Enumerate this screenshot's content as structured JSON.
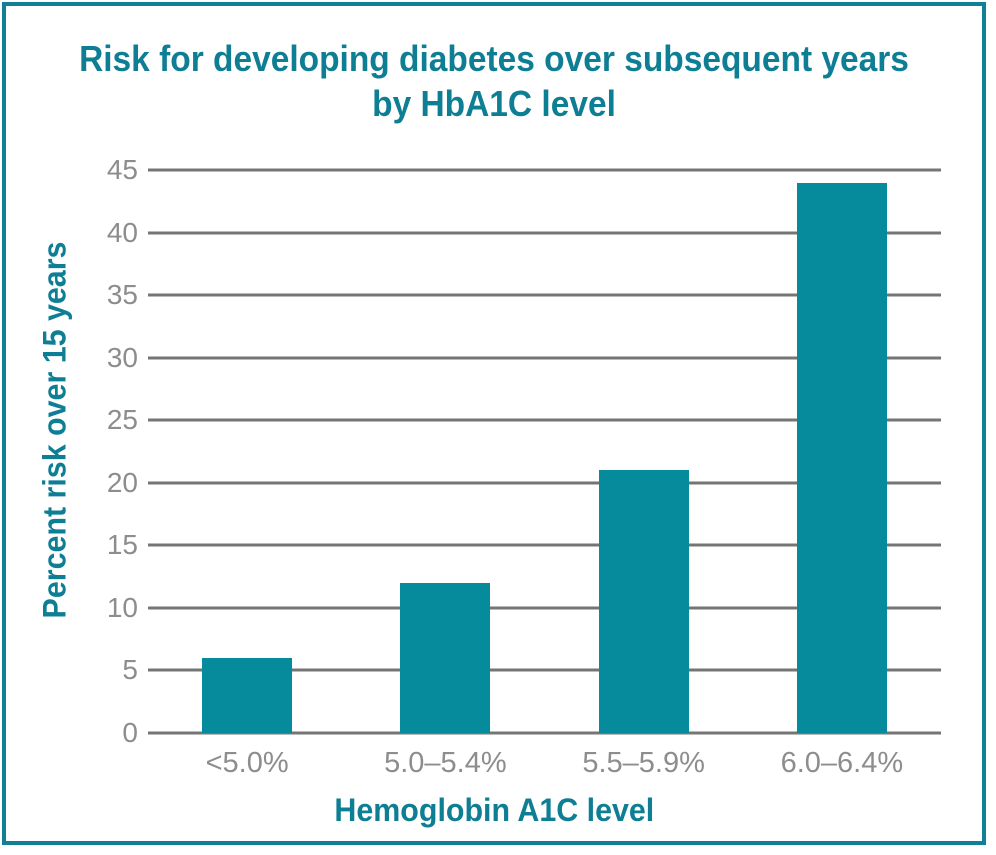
{
  "chart_data": {
    "type": "bar",
    "title": "Risk for developing diabetes over subsequent years by HbA1C level",
    "title_lines": [
      "Risk for developing diabetes over subsequent years",
      "by HbA1C level"
    ],
    "categories": [
      "<5.0%",
      "5.0–5.4%",
      "5.5–5.9%",
      "6.0–6.4%"
    ],
    "values": [
      6,
      12,
      21,
      44
    ],
    "xlabel": "Hemoglobin A1C level",
    "ylabel": "Percent risk over 15 years",
    "ylim": [
      0,
      45
    ],
    "yticks": [
      0,
      5,
      10,
      15,
      20,
      25,
      30,
      35,
      40,
      45
    ],
    "grid": "horizontal",
    "legend": "none",
    "colors": {
      "bar": "#058b9c",
      "title_text": "#0e7e94",
      "frame_border": "#0f8095",
      "gridline": "#757575",
      "tick_text": "#8d8d8d"
    }
  }
}
